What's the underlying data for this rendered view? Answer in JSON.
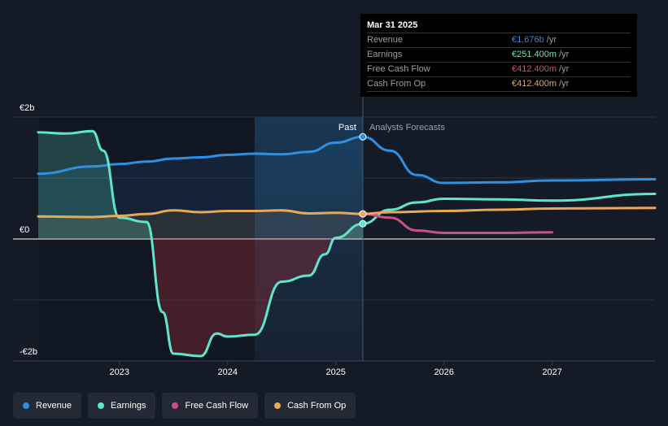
{
  "tooltip": {
    "date": "Mar 31 2025",
    "rows": [
      {
        "label": "Revenue",
        "value": "€1.676b",
        "unit": "/yr",
        "color": "#2f8fe0"
      },
      {
        "label": "Earnings",
        "value": "€251.400m",
        "unit": "/yr",
        "color": "#5ee6cc"
      },
      {
        "label": "Free Cash Flow",
        "value": "€412.400m",
        "unit": "/yr",
        "color": "#c8508a"
      },
      {
        "label": "Cash From Op",
        "value": "€412.400m",
        "unit": "/yr",
        "color": "#e8a855"
      }
    ]
  },
  "legend": [
    {
      "label": "Revenue",
      "color": "#2f8fe0"
    },
    {
      "label": "Earnings",
      "color": "#5ee6cc"
    },
    {
      "label": "Free Cash Flow",
      "color": "#c8508a"
    },
    {
      "label": "Cash From Op",
      "color": "#e8a855"
    }
  ],
  "chart_data": {
    "type": "line",
    "y_tick_labels": [
      "€2b",
      "€0",
      "-€2b"
    ],
    "ylim": [
      -2.0,
      2.0
    ],
    "xlim": [
      2022.25,
      2027.95
    ],
    "x_ticks": [
      2023,
      2024,
      2025,
      2026,
      2027
    ],
    "x_tick_labels": [
      "2023",
      "2024",
      "2025",
      "2026",
      "2027"
    ],
    "past_label": "Past",
    "forecast_label": "Analysts Forecasts",
    "divider_x": 2025.25,
    "highlight_start_x": 2024.25,
    "grid": true,
    "series": [
      {
        "name": "Revenue",
        "color": "#2f8fe0",
        "points": [
          [
            2022.25,
            1.07
          ],
          [
            2022.75,
            1.19
          ],
          [
            2023.0,
            1.23
          ],
          [
            2023.25,
            1.27
          ],
          [
            2023.5,
            1.32
          ],
          [
            2023.75,
            1.34
          ],
          [
            2024.0,
            1.38
          ],
          [
            2024.25,
            1.4
          ],
          [
            2024.5,
            1.39
          ],
          [
            2024.75,
            1.43
          ],
          [
            2025.0,
            1.58
          ],
          [
            2025.25,
            1.676
          ],
          [
            2025.5,
            1.45
          ],
          [
            2025.75,
            1.05
          ],
          [
            2026.0,
            0.92
          ],
          [
            2026.5,
            0.93
          ],
          [
            2027.0,
            0.96
          ],
          [
            2027.95,
            0.98
          ]
        ]
      },
      {
        "name": "Earnings",
        "color": "#5ee6cc",
        "points": [
          [
            2022.25,
            1.75
          ],
          [
            2022.5,
            1.73
          ],
          [
            2022.75,
            1.77
          ],
          [
            2022.85,
            1.45
          ],
          [
            2023.0,
            0.35
          ],
          [
            2023.25,
            0.28
          ],
          [
            2023.4,
            -1.2
          ],
          [
            2023.5,
            -1.88
          ],
          [
            2023.75,
            -1.92
          ],
          [
            2023.9,
            -1.55
          ],
          [
            2024.0,
            -1.6
          ],
          [
            2024.25,
            -1.57
          ],
          [
            2024.5,
            -0.7
          ],
          [
            2024.75,
            -0.6
          ],
          [
            2024.9,
            -0.25
          ],
          [
            2025.0,
            0.02
          ],
          [
            2025.25,
            0.251
          ],
          [
            2025.5,
            0.48
          ],
          [
            2025.75,
            0.6
          ],
          [
            2026.0,
            0.66
          ],
          [
            2026.5,
            0.65
          ],
          [
            2027.0,
            0.63
          ],
          [
            2027.95,
            0.74
          ]
        ]
      },
      {
        "name": "Free Cash Flow",
        "color": "#c8508a",
        "points": [
          [
            2025.25,
            0.412
          ],
          [
            2025.5,
            0.35
          ],
          [
            2025.75,
            0.14
          ],
          [
            2026.0,
            0.1
          ],
          [
            2026.5,
            0.1
          ],
          [
            2027.0,
            0.11
          ]
        ]
      },
      {
        "name": "Cash From Op",
        "color": "#e8a855",
        "points": [
          [
            2022.25,
            0.37
          ],
          [
            2022.75,
            0.36
          ],
          [
            2023.0,
            0.38
          ],
          [
            2023.25,
            0.41
          ],
          [
            2023.5,
            0.47
          ],
          [
            2023.75,
            0.44
          ],
          [
            2024.0,
            0.46
          ],
          [
            2024.25,
            0.46
          ],
          [
            2024.5,
            0.47
          ],
          [
            2024.75,
            0.42
          ],
          [
            2025.0,
            0.43
          ],
          [
            2025.25,
            0.412
          ],
          [
            2025.5,
            0.44
          ],
          [
            2026.0,
            0.46
          ],
          [
            2026.5,
            0.48
          ],
          [
            2027.0,
            0.5
          ],
          [
            2027.95,
            0.51
          ]
        ]
      }
    ]
  }
}
